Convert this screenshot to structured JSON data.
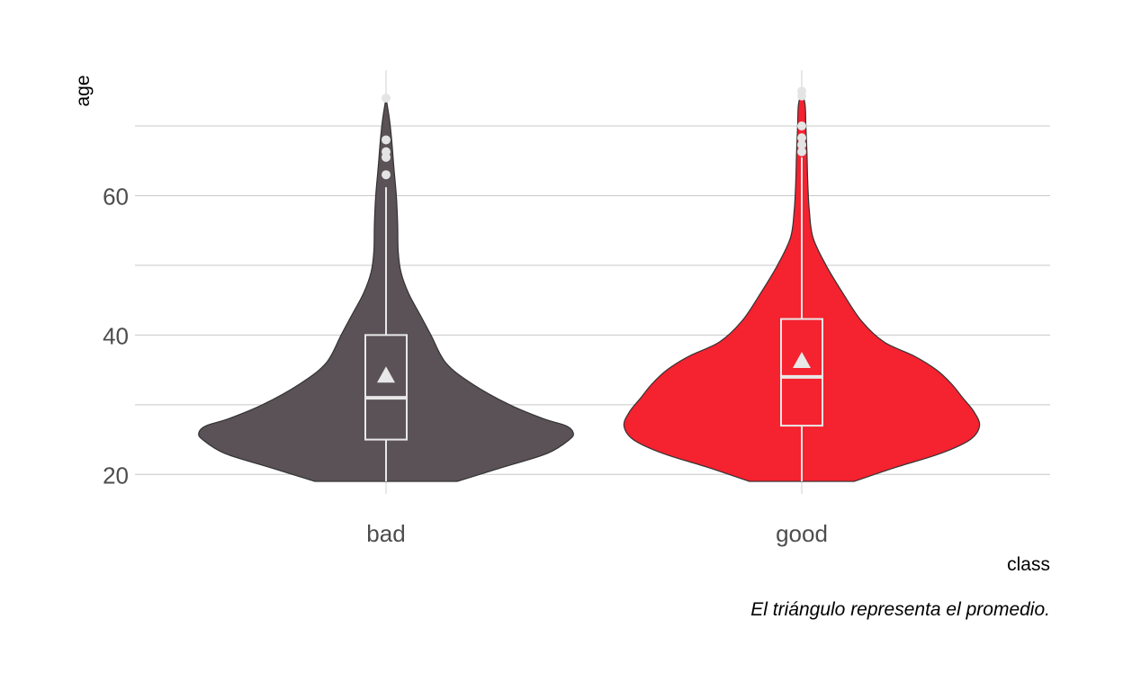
{
  "chart_data": {
    "type": "violin",
    "xlabel": "class",
    "ylabel": "age",
    "ylim": [
      17.2,
      78
    ],
    "yticks": [
      20,
      40,
      60
    ],
    "grid": "horizontal major and minor, vertical at categories",
    "caption": "El triángulo representa el promedio.",
    "groups": [
      {
        "label": "bad",
        "color": "#5a5256",
        "min": 19,
        "q1": 25,
        "median": 31,
        "q3": 40,
        "mean": 34.2,
        "whisker_low": 19,
        "whisker_high": 61.2,
        "outliers": [
          63,
          65.5,
          66.3,
          68,
          74
        ],
        "density": [
          [
            19,
            0.38
          ],
          [
            21,
            0.62
          ],
          [
            23,
            0.86
          ],
          [
            25,
            0.98
          ],
          [
            26,
            1.0
          ],
          [
            27,
            0.96
          ],
          [
            28,
            0.84
          ],
          [
            30,
            0.66
          ],
          [
            33,
            0.46
          ],
          [
            36,
            0.32
          ],
          [
            40,
            0.24
          ],
          [
            43,
            0.18
          ],
          [
            46,
            0.12
          ],
          [
            49,
            0.08
          ],
          [
            52,
            0.065
          ],
          [
            56,
            0.062
          ],
          [
            60,
            0.055
          ],
          [
            64,
            0.042
          ],
          [
            68,
            0.03
          ],
          [
            71,
            0.018
          ],
          [
            74,
            0
          ]
        ]
      },
      {
        "label": "good",
        "color": "#f5222f",
        "min": 19,
        "q1": 27,
        "median": 34,
        "q3": 42.3,
        "mean": 36.3,
        "whisker_low": 19,
        "whisker_high": 65.5,
        "outliers": [
          66.3,
          67.3,
          68.3,
          70,
          74.3,
          75
        ],
        "density": [
          [
            19,
            0.28
          ],
          [
            21,
            0.5
          ],
          [
            23,
            0.74
          ],
          [
            25,
            0.9
          ],
          [
            27,
            0.95
          ],
          [
            29,
            0.92
          ],
          [
            31,
            0.86
          ],
          [
            33,
            0.8
          ],
          [
            35,
            0.72
          ],
          [
            37,
            0.6
          ],
          [
            39,
            0.44
          ],
          [
            42,
            0.32
          ],
          [
            46,
            0.22
          ],
          [
            50,
            0.13
          ],
          [
            54,
            0.06
          ],
          [
            58,
            0.04
          ],
          [
            62,
            0.032
          ],
          [
            66,
            0.028
          ],
          [
            70,
            0.022
          ],
          [
            73,
            0.018
          ],
          [
            75,
            0
          ]
        ]
      }
    ]
  }
}
